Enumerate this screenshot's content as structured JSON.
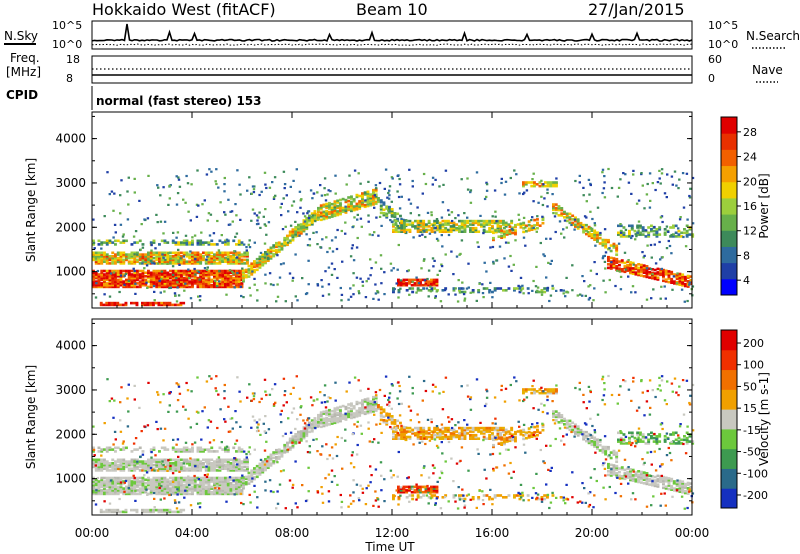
{
  "header": {
    "station": "Hokkaido West (fitACF)",
    "beam": "Beam 10",
    "date": "27/Jan/2015"
  },
  "noise_panel": {
    "left_label": "N.Sky",
    "right_label": "N.Search",
    "left_ticks": [
      "10^5",
      "10^0"
    ],
    "right_ticks": [
      "10^5",
      "10^0"
    ]
  },
  "freq_panel": {
    "left_label_1": "Freq.",
    "left_label_2": "[MHz]",
    "right_label": "Nave",
    "left_ticks": [
      "18",
      "8"
    ],
    "right_ticks": [
      "60",
      "0"
    ]
  },
  "cpid": {
    "label": "CPID",
    "value": "normal (fast stereo) 153"
  },
  "chart_data": [
    {
      "type": "heatmap",
      "title": "",
      "ylabel": "Slant Range [km]",
      "xlabel": "",
      "ylim": [
        180,
        4600
      ],
      "yticks": [
        "4000",
        "3000",
        "2000",
        "1000"
      ],
      "yticks_values": [
        4000,
        3000,
        2000,
        1000
      ],
      "colorbar": {
        "label": "Power [dB]",
        "ticks": [
          "28",
          "24",
          "20",
          "16",
          "12",
          "8",
          "4"
        ],
        "colors": [
          "#0000ff",
          "#1f3fa6",
          "#2e6b9e",
          "#3d8a5a",
          "#67b04a",
          "#9ccf3c",
          "#f0d000",
          "#f5a000",
          "#f26000",
          "#e83000",
          "#e00000"
        ]
      }
    },
    {
      "type": "heatmap",
      "title": "",
      "ylabel": "Slant Range [km]",
      "xlabel": "Time UT",
      "ylim": [
        180,
        4600
      ],
      "yticks": [
        "4000",
        "3000",
        "2000",
        "1000"
      ],
      "yticks_values": [
        4000,
        3000,
        2000,
        1000
      ],
      "xticks": [
        "00:00",
        "04:00",
        "08:00",
        "12:00",
        "16:00",
        "20:00",
        "00:00"
      ],
      "xticks_hours": [
        0,
        4,
        8,
        12,
        16,
        20,
        24
      ],
      "colorbar": {
        "label": "Velocity [m s-1]",
        "ticks": [
          "200",
          "100",
          "50",
          "15",
          "-15",
          "-50",
          "-100",
          "-200"
        ],
        "colors": [
          "#1530c0",
          "#2a6a8a",
          "#3d9a50",
          "#6cc83c",
          "#c8c8c0",
          "#f0a000",
          "#f07000",
          "#f03000",
          "#e00000"
        ]
      }
    }
  ]
}
